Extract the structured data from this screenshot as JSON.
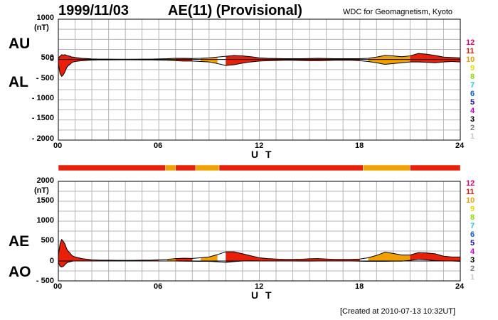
{
  "header": {
    "date": "1999/11/03",
    "title": "AE(11) (Provisional)",
    "source": "WDC for Geomagnetism, Kyoto"
  },
  "footer": {
    "created": "[Created at 2010-07-13 10:32UT]"
  },
  "top_panel": {
    "label_upper": "AU",
    "label_lower": "AL",
    "unit": "(nT)",
    "yticks": [
      "1000",
      "500",
      "0",
      "- 500",
      "- 1000",
      "- 1500",
      "- 2000"
    ]
  },
  "bottom_panel": {
    "label_upper": "AE",
    "label_lower": "AO",
    "unit": "(nT)",
    "yticks": [
      "2000",
      "1500",
      "1000",
      "500",
      "0",
      "- 500"
    ]
  },
  "xticks": [
    "00",
    "06",
    "12",
    "18",
    "24"
  ],
  "xlabel": "U T",
  "activity_levels": [
    {
      "label": "12",
      "color": "#e8006e"
    },
    {
      "label": "11",
      "color": "#e8200a"
    },
    {
      "label": "10",
      "color": "#f0a000"
    },
    {
      "label": "9",
      "color": "#e8e000"
    },
    {
      "label": "8",
      "color": "#90e000"
    },
    {
      "label": "7",
      "color": "#20c8e0"
    },
    {
      "label": "6",
      "color": "#1060e8"
    },
    {
      "label": "5",
      "color": "#2010b0"
    },
    {
      "label": "4",
      "color": "#d000d0"
    },
    {
      "label": "3",
      "color": "#000000"
    },
    {
      "label": "2",
      "color": "#808080"
    },
    {
      "label": "1",
      "color": "#c8c8c8"
    }
  ],
  "chart_data": [
    {
      "type": "area",
      "name": "AU/AL",
      "ylim": [
        -2000,
        1000
      ],
      "xlim": [
        0,
        24
      ],
      "grid": true,
      "x": [
        0,
        0.1,
        0.2,
        0.3,
        0.4,
        0.5,
        0.6,
        0.7,
        0.8,
        0.9,
        1.0,
        1.2,
        1.4,
        1.6,
        1.8,
        2.0,
        2.5,
        3.0,
        3.5,
        4.0,
        4.5,
        5.0,
        5.5,
        6.0,
        6.5,
        7.0,
        7.5,
        8.0,
        8.5,
        9.0,
        9.5,
        10.0,
        10.5,
        11.0,
        11.5,
        12.0,
        12.5,
        13.0,
        13.5,
        14.0,
        14.5,
        15.0,
        15.5,
        16.0,
        16.5,
        17.0,
        17.5,
        18.0,
        18.5,
        19.0,
        19.5,
        20.0,
        20.5,
        21.0,
        21.5,
        22.0,
        22.5,
        23.0,
        23.5,
        24.0
      ],
      "series": [
        {
          "name": "AU",
          "values": [
            40,
            80,
            120,
            110,
            120,
            100,
            90,
            80,
            60,
            60,
            50,
            40,
            30,
            25,
            20,
            15,
            10,
            10,
            8,
            8,
            8,
            10,
            10,
            15,
            20,
            30,
            30,
            25,
            30,
            40,
            60,
            80,
            100,
            90,
            70,
            40,
            30,
            25,
            20,
            20,
            20,
            25,
            30,
            25,
            20,
            20,
            20,
            20,
            30,
            60,
            100,
            90,
            70,
            90,
            150,
            130,
            100,
            60,
            50,
            40
          ]
        },
        {
          "name": "AL",
          "values": [
            -100,
            -350,
            -420,
            -380,
            -300,
            -200,
            -150,
            -120,
            -80,
            -60,
            -50,
            -40,
            -30,
            -25,
            -20,
            -15,
            -10,
            -10,
            -8,
            -8,
            -8,
            -10,
            -10,
            -15,
            -20,
            -30,
            -40,
            -40,
            -50,
            -60,
            -100,
            -150,
            -130,
            -90,
            -60,
            -40,
            -30,
            -25,
            -20,
            -20,
            -25,
            -30,
            -30,
            -25,
            -20,
            -20,
            -20,
            -30,
            -50,
            -80,
            -120,
            -100,
            -80,
            -60,
            -60,
            -70,
            -80,
            -60,
            -50,
            -60
          ]
        }
      ]
    },
    {
      "type": "area",
      "name": "AE/AO",
      "ylim": [
        -500,
        2000
      ],
      "xlim": [
        0,
        24
      ],
      "grid": true,
      "x": [
        0,
        0.1,
        0.2,
        0.3,
        0.4,
        0.5,
        0.6,
        0.7,
        0.8,
        0.9,
        1.0,
        1.2,
        1.4,
        1.6,
        1.8,
        2.0,
        2.5,
        3.0,
        3.5,
        4.0,
        4.5,
        5.0,
        5.5,
        6.0,
        6.5,
        7.0,
        7.5,
        8.0,
        8.5,
        9.0,
        9.5,
        10.0,
        10.5,
        11.0,
        11.5,
        12.0,
        12.5,
        13.0,
        13.5,
        14.0,
        14.5,
        15.0,
        15.5,
        16.0,
        16.5,
        17.0,
        17.5,
        18.0,
        18.5,
        19.0,
        19.5,
        20.0,
        20.5,
        21.0,
        21.5,
        22.0,
        22.5,
        23.0,
        23.5,
        24.0
      ],
      "series": [
        {
          "name": "AE",
          "values": [
            140,
            430,
            540,
            490,
            420,
            300,
            240,
            200,
            140,
            120,
            100,
            80,
            60,
            50,
            40,
            30,
            20,
            20,
            16,
            16,
            16,
            20,
            20,
            30,
            40,
            60,
            70,
            65,
            80,
            100,
            160,
            230,
            230,
            180,
            130,
            80,
            60,
            50,
            40,
            40,
            45,
            55,
            60,
            50,
            40,
            40,
            40,
            50,
            80,
            140,
            220,
            190,
            150,
            150,
            210,
            200,
            180,
            120,
            100,
            100
          ]
        },
        {
          "name": "AO",
          "values": [
            -30,
            -135,
            -150,
            -135,
            -90,
            -50,
            -30,
            -20,
            -10,
            0,
            0,
            0,
            0,
            0,
            0,
            0,
            0,
            0,
            0,
            0,
            0,
            0,
            0,
            0,
            0,
            0,
            -5,
            -7,
            -10,
            -10,
            -20,
            -35,
            -15,
            0,
            5,
            0,
            0,
            0,
            0,
            0,
            -3,
            -3,
            0,
            0,
            0,
            0,
            0,
            -5,
            -10,
            -10,
            -10,
            -5,
            -5,
            15,
            45,
            30,
            10,
            0,
            0,
            -10
          ]
        }
      ]
    },
    {
      "type": "heatmap",
      "name": "activity-bar",
      "segments": [
        {
          "start": 0,
          "end": 6.4,
          "level": 11
        },
        {
          "start": 6.4,
          "end": 7.0,
          "level": 10
        },
        {
          "start": 7.0,
          "end": 8.2,
          "level": 11
        },
        {
          "start": 8.2,
          "end": 9.6,
          "level": 10
        },
        {
          "start": 9.6,
          "end": 18.2,
          "level": 11
        },
        {
          "start": 18.2,
          "end": 21.0,
          "level": 10
        },
        {
          "start": 21.0,
          "end": 24.0,
          "level": 11
        }
      ]
    }
  ]
}
